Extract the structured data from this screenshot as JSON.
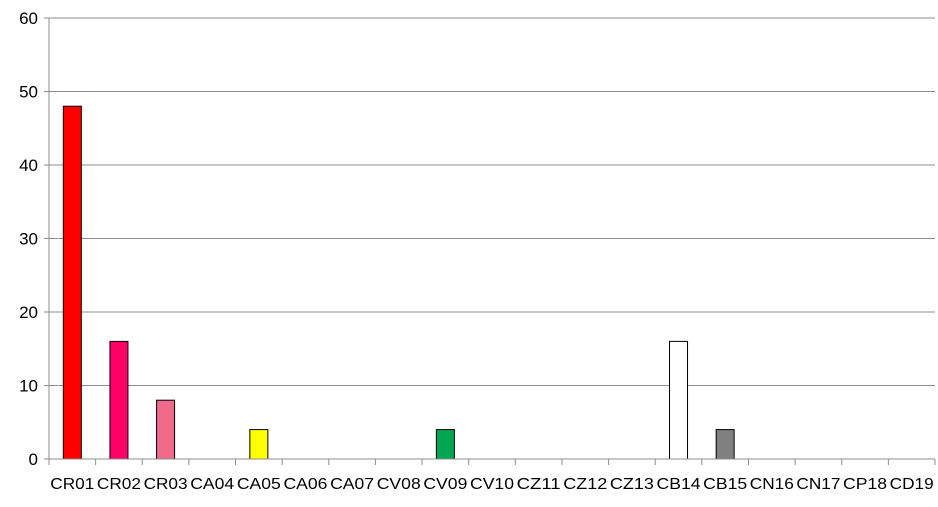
{
  "chart_data": {
    "type": "bar",
    "categories": [
      "CR01",
      "CR02",
      "CR03",
      "CA04",
      "CA05",
      "CA06",
      "CA07",
      "CV08",
      "CV09",
      "CV10",
      "CZ11",
      "CZ12",
      "CZ13",
      "CB14",
      "CB15",
      "CN16",
      "CN17",
      "CP18",
      "CD19"
    ],
    "values": [
      48,
      16,
      8,
      0,
      4,
      0,
      0,
      0,
      4,
      0,
      0,
      0,
      0,
      16,
      4,
      0,
      0,
      0,
      0
    ],
    "colors": [
      "#ff0000",
      "#ff0066",
      "#f06a8c",
      "#ffffff",
      "#ffff00",
      "#ffffff",
      "#ffffff",
      "#ffffff",
      "#00a651",
      "#ffffff",
      "#ffffff",
      "#ffffff",
      "#ffffff",
      "#ffffff",
      "#808080",
      "#ffffff",
      "#ffffff",
      "#ffffff",
      "#ffffff"
    ],
    "yticks": [
      "0",
      "10",
      "20",
      "30",
      "40",
      "50",
      "60"
    ],
    "ylim": [
      0,
      60
    ],
    "grid": true,
    "legend": "none",
    "title": "",
    "xlabel": "",
    "ylabel": ""
  }
}
